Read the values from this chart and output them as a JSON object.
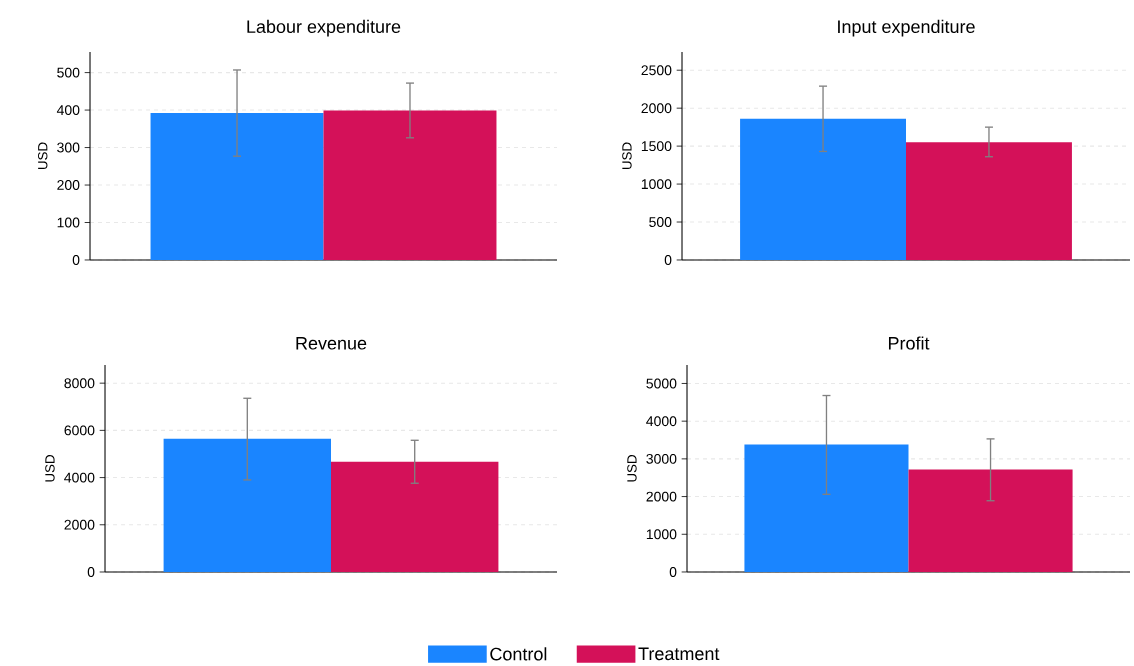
{
  "chart_data": [
    {
      "type": "bar",
      "title": "Labour expenditure",
      "ylabel": "USD",
      "categories": [
        null
      ],
      "ylim": [
        0,
        555
      ],
      "yticks": [
        0,
        100,
        200,
        300,
        400,
        500
      ],
      "grid": "y",
      "tick_labels": "y",
      "series": [
        {
          "color": "#1a85ff",
          "values": [
            392
          ],
          "errors": [
            [
              277,
              507
            ]
          ]
        },
        {
          "color": "#d41159",
          "values": [
            399
          ],
          "errors": [
            [
              326,
              472
            ]
          ]
        }
      ]
    },
    {
      "type": "bar",
      "title": "Input expenditure",
      "ylabel": "USD",
      "categories": [
        null
      ],
      "ylim": [
        0,
        2740
      ],
      "yticks": [
        0,
        500,
        1000,
        1500,
        2000,
        2500
      ],
      "grid": "y",
      "tick_labels": "y",
      "series": [
        {
          "color": "#1a85ff",
          "values": [
            1860
          ],
          "errors": [
            [
              1430,
              2290
            ]
          ]
        },
        {
          "color": "#d41159",
          "values": [
            1550
          ],
          "errors": [
            [
              1360,
              1750
            ]
          ]
        }
      ]
    },
    {
      "type": "bar",
      "title": "Revenue",
      "ylabel": "USD",
      "categories": [
        null
      ],
      "ylim": [
        0,
        8770
      ],
      "yticks": [
        0,
        2000,
        4000,
        6000,
        8000
      ],
      "grid": "y",
      "tick_labels": "y",
      "legend": "bottom",
      "series": [
        {
          "name": "Control",
          "color": "#1a85ff",
          "values": [
            5640
          ],
          "errors": [
            [
              3900,
              7360
            ]
          ]
        },
        {
          "name": "Treatment",
          "color": "#d41159",
          "values": [
            4670
          ],
          "errors": [
            [
              3760,
              5580
            ]
          ]
        }
      ]
    },
    {
      "type": "bar",
      "title": "Profit",
      "ylabel": "USD",
      "categories": [
        null
      ],
      "ylim": [
        0,
        5490
      ],
      "yticks": [
        0,
        1000,
        2000,
        3000,
        4000,
        5000
      ],
      "grid": "y",
      "tick_labels": "y",
      "series": [
        {
          "color": "#1a85ff",
          "values": [
            3380
          ],
          "errors": [
            [
              2060,
              4680
            ]
          ]
        },
        {
          "color": "#d41159",
          "values": [
            2720
          ],
          "errors": [
            [
              1890,
              3530
            ]
          ]
        }
      ]
    }
  ]
}
